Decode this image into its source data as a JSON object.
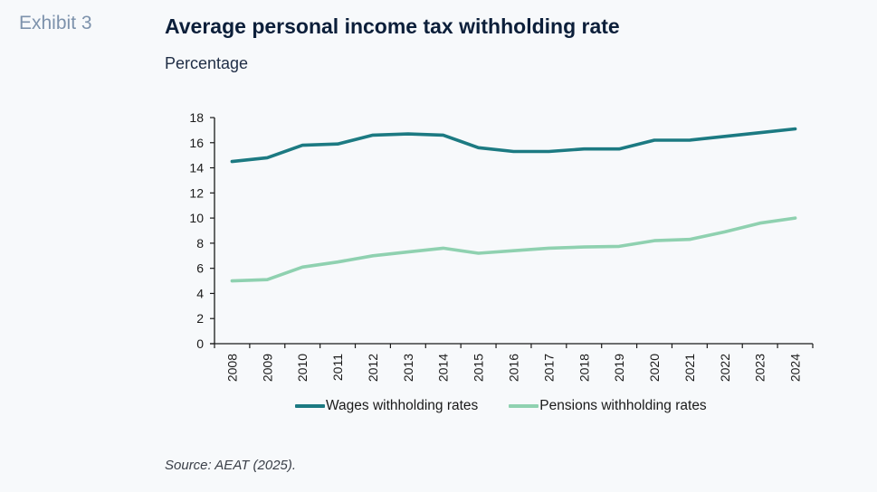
{
  "header": {
    "exhibit_label": "Exhibit 3",
    "title": "Average personal income tax withholding rate",
    "subtitle": "Percentage"
  },
  "footer": {
    "source": "Source: AEAT (2025)."
  },
  "colors": {
    "wages": "#1c7a82",
    "pensions": "#8fd1b0",
    "axis": "#1a1a1a"
  },
  "chart_data": {
    "type": "line",
    "title": "Average personal income tax withholding rate",
    "subtitle": "Percentage",
    "xlabel": "",
    "ylabel": "",
    "categories": [
      "2008",
      "2009",
      "2010",
      "2011",
      "2012",
      "2013",
      "2014",
      "2015",
      "2016",
      "2017",
      "2018",
      "2019",
      "2020",
      "2021",
      "2022",
      "2023",
      "2024"
    ],
    "ylim": [
      0,
      18
    ],
    "yticks": [
      0,
      2,
      4,
      6,
      8,
      10,
      12,
      14,
      16,
      18
    ],
    "grid": false,
    "legend_position": "bottom",
    "series": [
      {
        "name": "Wages withholding rates",
        "color": "#1c7a82",
        "values": [
          14.5,
          14.8,
          15.8,
          15.9,
          16.6,
          16.7,
          16.6,
          15.6,
          15.3,
          15.3,
          15.5,
          15.5,
          16.2,
          16.2,
          16.5,
          16.8,
          17.1
        ]
      },
      {
        "name": "Pensions withholding rates",
        "color": "#8fd1b0",
        "values": [
          5.0,
          5.1,
          6.1,
          6.5,
          7.0,
          7.3,
          7.6,
          7.2,
          7.4,
          7.6,
          7.7,
          7.75,
          8.2,
          8.3,
          8.9,
          9.6,
          10.0
        ]
      }
    ],
    "source": "Source: AEAT (2025)."
  }
}
